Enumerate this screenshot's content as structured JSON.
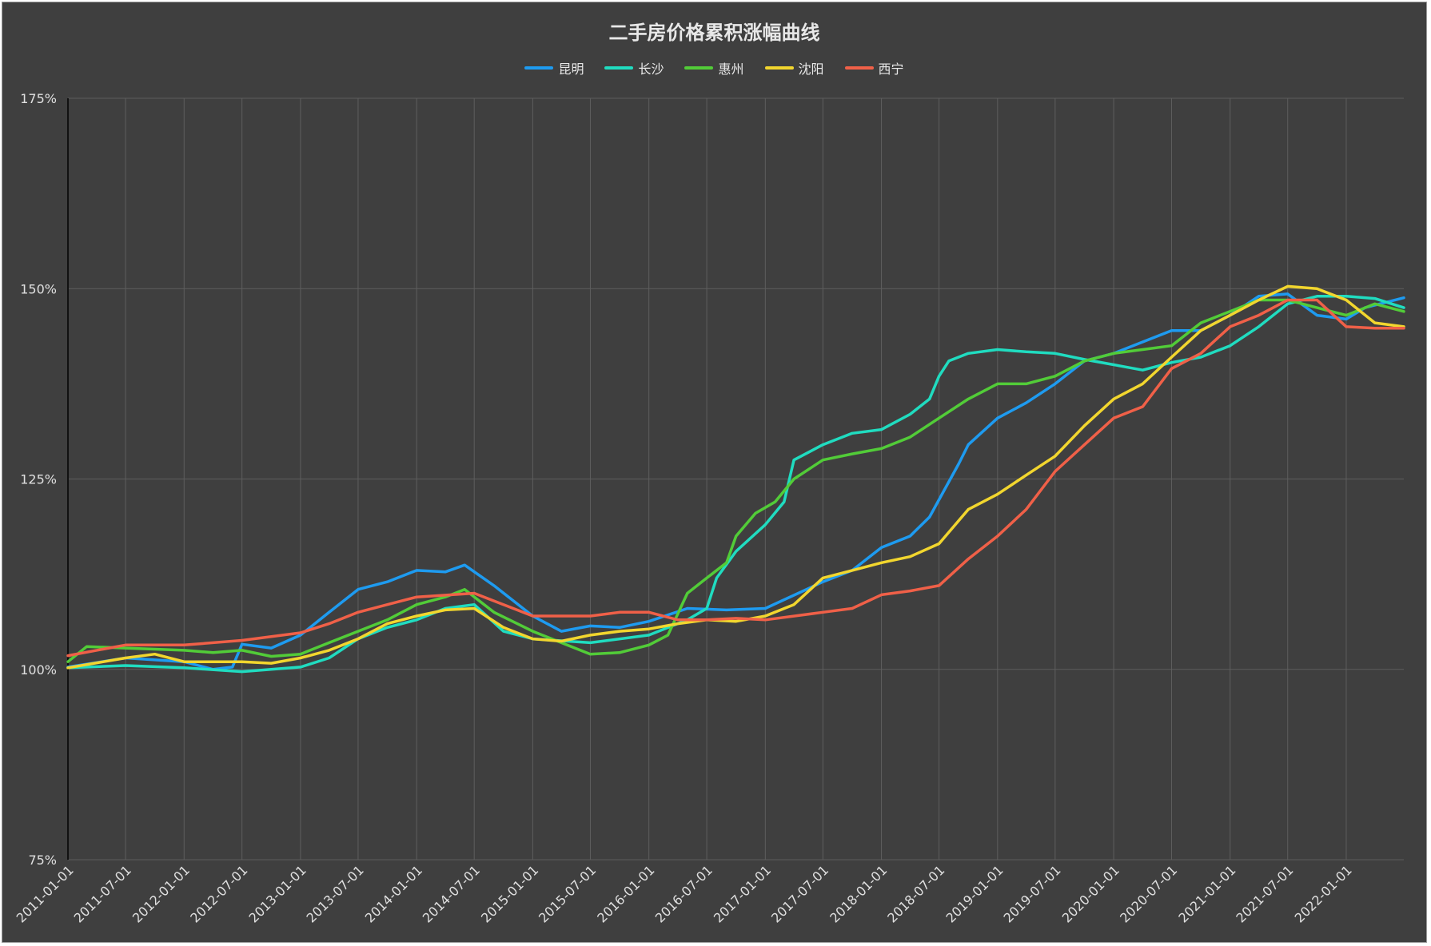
{
  "chart_data": {
    "type": "line",
    "title": "二手房价格累积涨幅曲线",
    "xlabel": "",
    "ylabel": "",
    "ylim": [
      75,
      175
    ],
    "y_ticks": [
      {
        "value": 75,
        "label": "75%"
      },
      {
        "value": 100,
        "label": "100%"
      },
      {
        "value": 125,
        "label": "125%"
      },
      {
        "value": 150,
        "label": "150%"
      },
      {
        "value": 175,
        "label": "175%"
      }
    ],
    "x_tick_labels": [
      "2011-01-01",
      "2011-07-01",
      "2012-01-01",
      "2012-07-01",
      "2013-01-01",
      "2013-07-01",
      "2014-01-01",
      "2014-07-01",
      "2015-01-01",
      "2015-07-01",
      "2016-01-01",
      "2016-07-01",
      "2017-01-01",
      "2017-07-01",
      "2018-01-01",
      "2018-07-01",
      "2019-01-01",
      "2019-07-01",
      "2020-01-01",
      "2020-07-01",
      "2021-01-01",
      "2021-07-01",
      "2022-01-01"
    ],
    "x_range": [
      "2011-01-01",
      "2022-07-01"
    ],
    "grid": true,
    "legend_position": "top-center",
    "series": [
      {
        "name": "昆明",
        "color": "#1e9bf0",
        "points": [
          [
            "2011-01",
            100.3
          ],
          [
            "2011-07",
            101.5
          ],
          [
            "2012-01",
            101.0
          ],
          [
            "2012-04",
            100.0
          ],
          [
            "2012-06",
            100.3
          ],
          [
            "2012-07",
            103.3
          ],
          [
            "2012-10",
            102.8
          ],
          [
            "2013-01",
            104.5
          ],
          [
            "2013-04",
            107.5
          ],
          [
            "2013-07",
            110.5
          ],
          [
            "2013-10",
            111.5
          ],
          [
            "2014-01",
            113.0
          ],
          [
            "2014-04",
            112.8
          ],
          [
            "2014-06",
            113.7
          ],
          [
            "2014-09",
            111.0
          ],
          [
            "2015-01",
            107.0
          ],
          [
            "2015-04",
            105.0
          ],
          [
            "2015-07",
            105.7
          ],
          [
            "2015-10",
            105.5
          ],
          [
            "2016-01",
            106.3
          ],
          [
            "2016-05",
            108.0
          ],
          [
            "2016-09",
            107.8
          ],
          [
            "2017-01",
            108.0
          ],
          [
            "2017-07",
            111.5
          ],
          [
            "2017-10",
            113.0
          ],
          [
            "2018-01",
            116.0
          ],
          [
            "2018-04",
            117.5
          ],
          [
            "2018-06",
            120.0
          ],
          [
            "2018-09",
            127.0
          ],
          [
            "2018-10",
            129.5
          ],
          [
            "2019-01",
            133.0
          ],
          [
            "2019-04",
            135.0
          ],
          [
            "2019-07",
            137.5
          ],
          [
            "2019-10",
            140.5
          ],
          [
            "2020-01",
            141.5
          ],
          [
            "2020-04",
            143.0
          ],
          [
            "2020-07",
            144.5
          ],
          [
            "2020-10",
            144.5
          ],
          [
            "2021-01",
            146.5
          ],
          [
            "2021-04",
            149.0
          ],
          [
            "2021-07",
            149.3
          ],
          [
            "2021-10",
            146.5
          ],
          [
            "2022-01",
            146.0
          ],
          [
            "2022-03",
            147.5
          ],
          [
            "2022-07",
            148.8
          ]
        ]
      },
      {
        "name": "长沙",
        "color": "#20dcc0",
        "points": [
          [
            "2011-01",
            100.2
          ],
          [
            "2011-07",
            100.5
          ],
          [
            "2012-01",
            100.2
          ],
          [
            "2012-07",
            99.7
          ],
          [
            "2013-01",
            100.3
          ],
          [
            "2013-04",
            101.5
          ],
          [
            "2013-07",
            104.0
          ],
          [
            "2013-10",
            105.5
          ],
          [
            "2014-01",
            106.5
          ],
          [
            "2014-04",
            108.0
          ],
          [
            "2014-07",
            108.5
          ],
          [
            "2014-10",
            105.0
          ],
          [
            "2015-01",
            104.0
          ],
          [
            "2015-07",
            103.5
          ],
          [
            "2016-01",
            104.5
          ],
          [
            "2016-05",
            106.5
          ],
          [
            "2016-07",
            108.0
          ],
          [
            "2016-08",
            112.0
          ],
          [
            "2016-10",
            115.5
          ],
          [
            "2017-01",
            119.0
          ],
          [
            "2017-03",
            122.0
          ],
          [
            "2017-04",
            127.5
          ],
          [
            "2017-07",
            129.5
          ],
          [
            "2017-10",
            131.0
          ],
          [
            "2018-01",
            131.5
          ],
          [
            "2018-04",
            133.5
          ],
          [
            "2018-06",
            135.5
          ],
          [
            "2018-07",
            138.5
          ],
          [
            "2018-08",
            140.5
          ],
          [
            "2018-10",
            141.5
          ],
          [
            "2019-01",
            142.0
          ],
          [
            "2019-04",
            141.7
          ],
          [
            "2019-07",
            141.5
          ],
          [
            "2019-10",
            140.7
          ],
          [
            "2020-01",
            140.0
          ],
          [
            "2020-04",
            139.3
          ],
          [
            "2020-07",
            140.3
          ],
          [
            "2020-10",
            141.0
          ],
          [
            "2021-01",
            142.5
          ],
          [
            "2021-04",
            145.0
          ],
          [
            "2021-07",
            148.0
          ],
          [
            "2021-10",
            149.0
          ],
          [
            "2022-01",
            149.0
          ],
          [
            "2022-04",
            148.7
          ],
          [
            "2022-07",
            147.5
          ]
        ]
      },
      {
        "name": "惠州",
        "color": "#52cc38",
        "points": [
          [
            "2011-01",
            101.0
          ],
          [
            "2011-03",
            103.0
          ],
          [
            "2011-07",
            102.8
          ],
          [
            "2012-01",
            102.5
          ],
          [
            "2012-04",
            102.2
          ],
          [
            "2012-07",
            102.5
          ],
          [
            "2012-10",
            101.7
          ],
          [
            "2013-01",
            102.0
          ],
          [
            "2013-04",
            103.5
          ],
          [
            "2013-07",
            105.0
          ],
          [
            "2013-10",
            106.5
          ],
          [
            "2014-01",
            108.5
          ],
          [
            "2014-04",
            109.5
          ],
          [
            "2014-06",
            110.5
          ],
          [
            "2014-09",
            107.5
          ],
          [
            "2015-01",
            105.0
          ],
          [
            "2015-04",
            103.5
          ],
          [
            "2015-07",
            102.0
          ],
          [
            "2015-10",
            102.2
          ],
          [
            "2016-01",
            103.2
          ],
          [
            "2016-03",
            104.5
          ],
          [
            "2016-05",
            110.0
          ],
          [
            "2016-07",
            112.0
          ],
          [
            "2016-09",
            114.0
          ],
          [
            "2016-10",
            117.5
          ],
          [
            "2016-12",
            120.5
          ],
          [
            "2017-02",
            122.0
          ],
          [
            "2017-04",
            125.0
          ],
          [
            "2017-07",
            127.5
          ],
          [
            "2017-10",
            128.3
          ],
          [
            "2018-01",
            129.0
          ],
          [
            "2018-04",
            130.5
          ],
          [
            "2018-07",
            133.0
          ],
          [
            "2018-10",
            135.5
          ],
          [
            "2019-01",
            137.5
          ],
          [
            "2019-04",
            137.5
          ],
          [
            "2019-07",
            138.5
          ],
          [
            "2019-10",
            140.5
          ],
          [
            "2020-01",
            141.5
          ],
          [
            "2020-04",
            142.0
          ],
          [
            "2020-07",
            142.5
          ],
          [
            "2020-10",
            145.5
          ],
          [
            "2021-01",
            147.0
          ],
          [
            "2021-04",
            148.5
          ],
          [
            "2021-07",
            148.5
          ],
          [
            "2021-10",
            147.5
          ],
          [
            "2022-01",
            146.5
          ],
          [
            "2022-04",
            148.0
          ],
          [
            "2022-07",
            147.0
          ]
        ]
      },
      {
        "name": "沈阳",
        "color": "#f2d62e",
        "points": [
          [
            "2011-01",
            100.2
          ],
          [
            "2011-07",
            101.5
          ],
          [
            "2011-10",
            102.0
          ],
          [
            "2012-01",
            101.0
          ],
          [
            "2012-07",
            101.0
          ],
          [
            "2012-10",
            100.8
          ],
          [
            "2013-01",
            101.5
          ],
          [
            "2013-04",
            102.5
          ],
          [
            "2013-07",
            104.0
          ],
          [
            "2013-10",
            106.0
          ],
          [
            "2014-01",
            107.0
          ],
          [
            "2014-04",
            107.8
          ],
          [
            "2014-07",
            108.0
          ],
          [
            "2014-10",
            105.5
          ],
          [
            "2015-01",
            104.0
          ],
          [
            "2015-04",
            103.7
          ],
          [
            "2015-07",
            104.5
          ],
          [
            "2015-10",
            105.0
          ],
          [
            "2016-01",
            105.3
          ],
          [
            "2016-04",
            106.0
          ],
          [
            "2016-07",
            106.5
          ],
          [
            "2016-10",
            106.3
          ],
          [
            "2017-01",
            107.0
          ],
          [
            "2017-04",
            108.5
          ],
          [
            "2017-07",
            112.0
          ],
          [
            "2017-10",
            113.0
          ],
          [
            "2018-01",
            114.0
          ],
          [
            "2018-04",
            114.8
          ],
          [
            "2018-07",
            116.5
          ],
          [
            "2018-10",
            121.0
          ],
          [
            "2019-01",
            123.0
          ],
          [
            "2019-04",
            125.5
          ],
          [
            "2019-07",
            128.0
          ],
          [
            "2019-10",
            132.0
          ],
          [
            "2020-01",
            135.5
          ],
          [
            "2020-04",
            137.5
          ],
          [
            "2020-07",
            141.0
          ],
          [
            "2020-10",
            144.5
          ],
          [
            "2021-01",
            146.5
          ],
          [
            "2021-04",
            148.5
          ],
          [
            "2021-07",
            150.3
          ],
          [
            "2021-10",
            150.0
          ],
          [
            "2022-01",
            148.5
          ],
          [
            "2022-04",
            145.5
          ],
          [
            "2022-07",
            145.0
          ]
        ]
      },
      {
        "name": "西宁",
        "color": "#f06048",
        "points": [
          [
            "2011-01",
            101.8
          ],
          [
            "2011-07",
            103.2
          ],
          [
            "2012-01",
            103.2
          ],
          [
            "2012-07",
            103.8
          ],
          [
            "2013-01",
            104.8
          ],
          [
            "2013-04",
            106.0
          ],
          [
            "2013-07",
            107.5
          ],
          [
            "2013-10",
            108.5
          ],
          [
            "2014-01",
            109.5
          ],
          [
            "2014-07",
            110.0
          ],
          [
            "2014-10",
            108.5
          ],
          [
            "2015-01",
            107.0
          ],
          [
            "2015-07",
            107.0
          ],
          [
            "2015-10",
            107.5
          ],
          [
            "2016-01",
            107.5
          ],
          [
            "2016-04",
            106.5
          ],
          [
            "2016-07",
            106.5
          ],
          [
            "2016-10",
            106.7
          ],
          [
            "2017-01",
            106.5
          ],
          [
            "2017-07",
            107.5
          ],
          [
            "2017-10",
            108.0
          ],
          [
            "2018-01",
            109.8
          ],
          [
            "2018-04",
            110.3
          ],
          [
            "2018-07",
            111.0
          ],
          [
            "2018-10",
            114.5
          ],
          [
            "2019-01",
            117.5
          ],
          [
            "2019-04",
            121.0
          ],
          [
            "2019-07",
            126.0
          ],
          [
            "2019-10",
            129.5
          ],
          [
            "2020-01",
            133.0
          ],
          [
            "2020-04",
            134.5
          ],
          [
            "2020-07",
            139.5
          ],
          [
            "2020-10",
            141.5
          ],
          [
            "2021-01",
            145.0
          ],
          [
            "2021-04",
            146.5
          ],
          [
            "2021-07",
            148.5
          ],
          [
            "2021-10",
            148.5
          ],
          [
            "2022-01",
            145.0
          ],
          [
            "2022-04",
            144.8
          ],
          [
            "2022-07",
            144.8
          ]
        ]
      }
    ]
  }
}
